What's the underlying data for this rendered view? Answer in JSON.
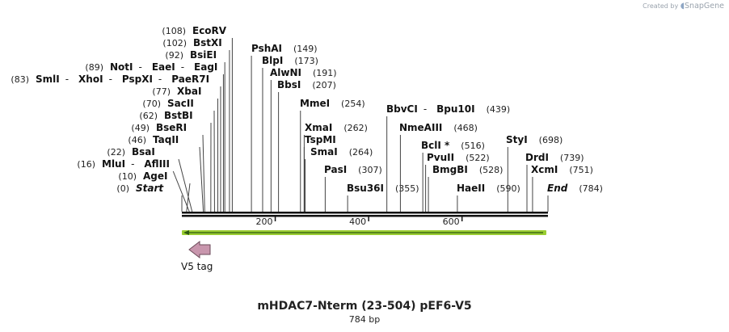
{
  "brand": {
    "prefix": "Created by",
    "name": "SnapGene"
  },
  "map": {
    "title": "mHDAC7-Nterm (23-504) pEF6-V5",
    "size_label": "784 bp",
    "length": 784
  },
  "axis_ticks": [
    {
      "pos": 200,
      "label": "200"
    },
    {
      "pos": 400,
      "label": "400"
    },
    {
      "pos": 600,
      "label": "600"
    }
  ],
  "feature": {
    "name": "V5 tag",
    "arrow_color": "#c896ad",
    "orf_color": "#9acd32"
  },
  "sites": {
    "left": [
      {
        "names": [
          "Start"
        ],
        "pos": 0,
        "pos_label": "(0)",
        "italic": true
      },
      {
        "names": [
          "AgeI"
        ],
        "pos": 10,
        "pos_label": "(10)"
      },
      {
        "names": [
          "MluI",
          "AflIII"
        ],
        "pos": 16,
        "pos_label": "(16)"
      },
      {
        "names": [
          "BsaI"
        ],
        "pos": 22,
        "pos_label": "(22)"
      },
      {
        "names": [
          "TaqII"
        ],
        "pos": 46,
        "pos_label": "(46)"
      },
      {
        "names": [
          "BseRI"
        ],
        "pos": 49,
        "pos_label": "(49)"
      },
      {
        "names": [
          "BstBI"
        ],
        "pos": 62,
        "pos_label": "(62)"
      },
      {
        "names": [
          "SacII"
        ],
        "pos": 70,
        "pos_label": "(70)"
      },
      {
        "names": [
          "XbaI"
        ],
        "pos": 77,
        "pos_label": "(77)"
      },
      {
        "names": [
          "SmlI",
          "XhoI",
          "PspXI",
          "PaeR7I"
        ],
        "pos": 83,
        "pos_label": "(83)"
      },
      {
        "names": [
          "NotI",
          "EaeI",
          "EagI"
        ],
        "pos": 89,
        "pos_label": "(89)"
      },
      {
        "names": [
          "BsiEI"
        ],
        "pos": 92,
        "pos_label": "(92)"
      },
      {
        "names": [
          "BstXI"
        ],
        "pos": 102,
        "pos_label": "(102)"
      },
      {
        "names": [
          "EcoRV"
        ],
        "pos": 108,
        "pos_label": "(108)"
      }
    ],
    "right": [
      {
        "names": [
          "PshAI"
        ],
        "pos": 149,
        "pos_label": "(149)"
      },
      {
        "names": [
          "BlpI"
        ],
        "pos": 173,
        "pos_label": "(173)"
      },
      {
        "names": [
          "AlwNI"
        ],
        "pos": 191,
        "pos_label": "(191)"
      },
      {
        "names": [
          "BbsI"
        ],
        "pos": 207,
        "pos_label": "(207)"
      },
      {
        "names": [
          "MmeI"
        ],
        "pos": 254,
        "pos_label": "(254)"
      },
      {
        "names": [
          "XmaI"
        ],
        "pos": 262,
        "pos_label": "(262)"
      },
      {
        "names": [
          "TspMI"
        ],
        "pos": 262,
        "pos_label": ""
      },
      {
        "names": [
          "SmaI"
        ],
        "pos": 264,
        "pos_label": "(264)"
      },
      {
        "names": [
          "PasI"
        ],
        "pos": 307,
        "pos_label": "(307)"
      },
      {
        "names": [
          "Bsu36I"
        ],
        "pos": 355,
        "pos_label": "(355)"
      },
      {
        "names": [
          "BbvCI",
          "Bpu10I"
        ],
        "pos": 439,
        "pos_label": "(439)"
      },
      {
        "names": [
          "NmeAIII"
        ],
        "pos": 468,
        "pos_label": "(468)"
      },
      {
        "names": [
          "BclI *"
        ],
        "pos": 516,
        "pos_label": "(516)"
      },
      {
        "names": [
          "PvuII"
        ],
        "pos": 522,
        "pos_label": "(522)"
      },
      {
        "names": [
          "BmgBI"
        ],
        "pos": 528,
        "pos_label": "(528)"
      },
      {
        "names": [
          "HaeII"
        ],
        "pos": 590,
        "pos_label": "(590)"
      },
      {
        "names": [
          "StyI"
        ],
        "pos": 698,
        "pos_label": "(698)"
      },
      {
        "names": [
          "DrdI"
        ],
        "pos": 739,
        "pos_label": "(739)"
      },
      {
        "names": [
          "XcmI"
        ],
        "pos": 751,
        "pos_label": "(751)"
      },
      {
        "names": [
          "End"
        ],
        "pos": 784,
        "pos_label": "(784)",
        "italic": true
      }
    ]
  }
}
